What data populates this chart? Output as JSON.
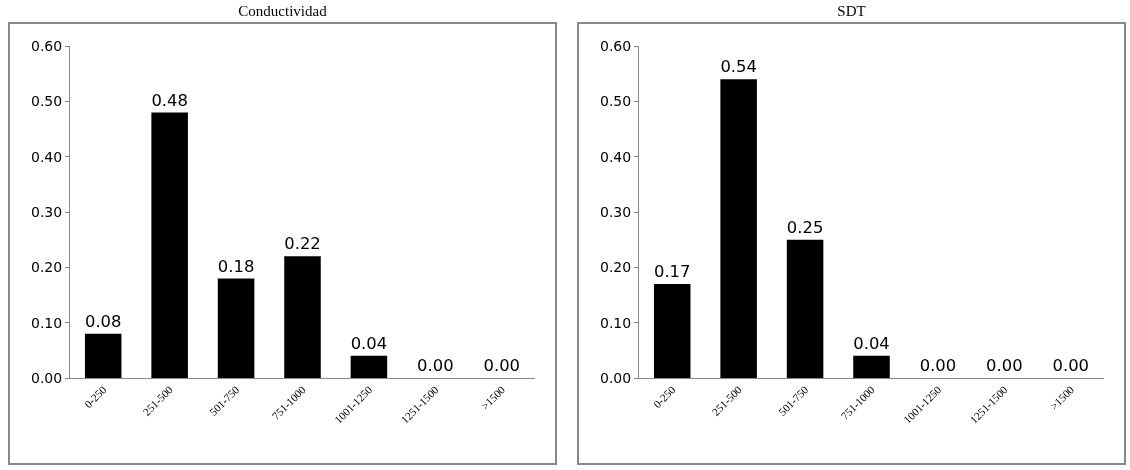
{
  "chart_data": [
    {
      "type": "bar",
      "title": "Conductividad",
      "categories": [
        "0-250",
        "251-500",
        "501-750",
        "751-1000",
        "1001-1250",
        "1251-1500",
        ">1500"
      ],
      "values": [
        0.08,
        0.48,
        0.18,
        0.22,
        0.04,
        0,
        0
      ],
      "value_labels": [
        "0.08",
        "0.48",
        "0.18",
        "0.22",
        "0.04",
        "0.00",
        "0.00"
      ],
      "color": "#000000",
      "ylim": [
        0,
        0.6
      ],
      "yticks": [
        {
          "value": 0,
          "label": "0.00"
        },
        {
          "value": 0.1,
          "label": "0.10"
        },
        {
          "value": 0.2,
          "label": "0.20"
        },
        {
          "value": 0.3,
          "label": "0.30"
        },
        {
          "value": 0.4,
          "label": "0.40"
        },
        {
          "value": 0.5,
          "label": "0.50"
        },
        {
          "value": 0.6,
          "label": "0.60"
        }
      ]
    },
    {
      "type": "bar",
      "title": "SDT",
      "categories": [
        "0-250",
        "251-500",
        "501-750",
        "751-1000",
        "1001-1250",
        "1251-1500",
        ">1500"
      ],
      "values": [
        0.17,
        0.54,
        0.25,
        0.04,
        0,
        0,
        0
      ],
      "value_labels": [
        "0.17",
        "0.54",
        "0.25",
        "0.04",
        "0.00",
        "0.00",
        "0.00"
      ],
      "color": "#000000",
      "ylim": [
        0,
        0.6
      ],
      "yticks": [
        {
          "value": 0,
          "label": "0.00"
        },
        {
          "value": 0.1,
          "label": "0.10"
        },
        {
          "value": 0.2,
          "label": "0.20"
        },
        {
          "value": 0.3,
          "label": "0.30"
        },
        {
          "value": 0.4,
          "label": "0.40"
        },
        {
          "value": 0.5,
          "label": "0.50"
        },
        {
          "value": 0.6,
          "label": "0.60"
        }
      ]
    }
  ]
}
